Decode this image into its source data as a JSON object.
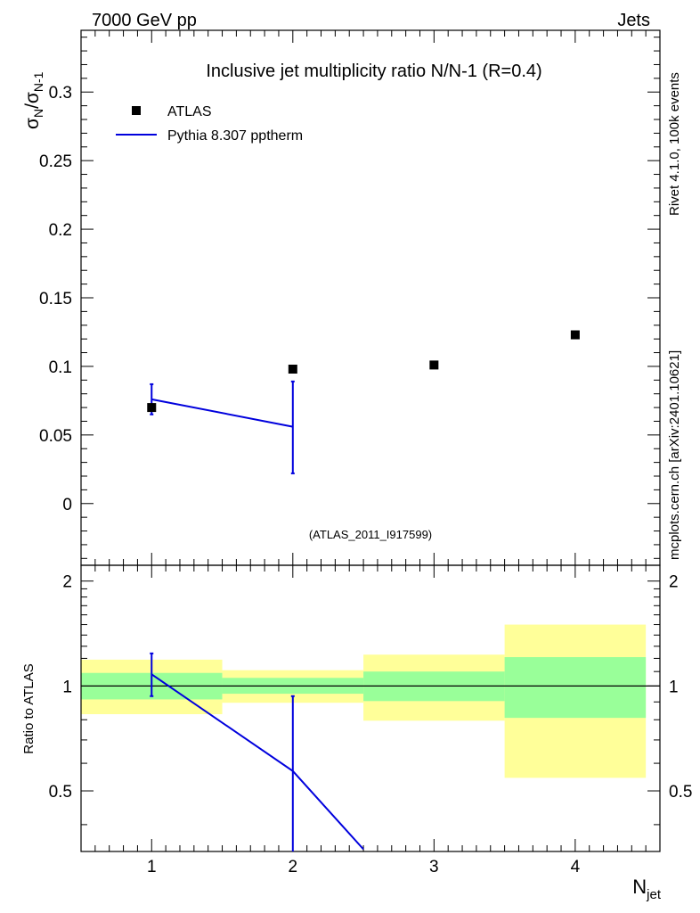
{
  "header": {
    "left": "7000 GeV pp",
    "right": "Jets"
  },
  "side_labels": {
    "rivet": "Rivet 4.1.0,  100k events",
    "mcplots": "mcplots.cern.ch [arXiv:2401.10621]"
  },
  "chart_data": [
    {
      "type": "scatter",
      "title": "Inclusive jet multiplicity ratio N/N-1 (R=0.4)",
      "analysis_id": "(ATLAS_2011_I917599)",
      "ylabel_main": "σ",
      "ylabel_sub_n": "N",
      "ylabel_slash": "/σ",
      "ylabel_sub_n1": "N-1",
      "xlim": [
        0.5,
        4.6
      ],
      "ylim": [
        -0.045,
        0.345
      ],
      "yticks": [
        0,
        0.05,
        0.1,
        0.15,
        0.2,
        0.25,
        0.3
      ],
      "ytick_labels": [
        "0",
        "0.05",
        "0.1",
        "0.15",
        "0.2",
        "0.25",
        "0.3"
      ],
      "legend_position": "top-left",
      "series": [
        {
          "name": "ATLAS",
          "kind": "data-markers",
          "color": "#000000",
          "x": [
            1,
            2,
            3,
            4
          ],
          "y": [
            0.07,
            0.098,
            0.101,
            0.123
          ]
        },
        {
          "name": "Pythia 8.307 pptherm",
          "kind": "mc-line",
          "color": "#0000dd",
          "x": [
            1,
            2
          ],
          "y": [
            0.076,
            0.056
          ],
          "err_low": [
            0.065,
            0.022
          ],
          "err_high": [
            0.087,
            0.089
          ]
        }
      ]
    },
    {
      "type": "line",
      "ylabel": "Ratio to ATLAS",
      "xlabel_main": "N",
      "xlabel_sub": "jet",
      "xlim": [
        0.5,
        4.6
      ],
      "ylim": [
        0.335,
        2.22
      ],
      "yticks": [
        0.5,
        1,
        2
      ],
      "ytick_labels": [
        "0.5",
        "1",
        "2"
      ],
      "xticks": [
        1,
        2,
        3,
        4
      ],
      "xtick_labels": [
        "1",
        "2",
        "3",
        "4"
      ],
      "reference_line": 1,
      "bands": [
        {
          "x_low": 0.5,
          "x_high": 1.5,
          "inner_low": 0.915,
          "inner_high": 1.09,
          "outer_low": 0.83,
          "outer_high": 1.19
        },
        {
          "x_low": 1.5,
          "x_high": 2.5,
          "inner_low": 0.95,
          "inner_high": 1.055,
          "outer_low": 0.895,
          "outer_high": 1.11
        },
        {
          "x_low": 2.5,
          "x_high": 3.5,
          "inner_low": 0.905,
          "inner_high": 1.1,
          "outer_low": 0.795,
          "outer_high": 1.23
        },
        {
          "x_low": 3.5,
          "x_high": 4.5,
          "inner_low": 0.81,
          "inner_high": 1.21,
          "outer_low": 0.545,
          "outer_high": 1.5
        }
      ],
      "band_colors": {
        "inner": "#99ff99",
        "outer": "#ffff99"
      },
      "series": [
        {
          "name": "Pythia 8.307 pptherm",
          "color": "#0000dd",
          "x": [
            1,
            2,
            2.5
          ],
          "y": [
            1.08,
            0.57,
            0.34
          ],
          "err_low": [
            0.935,
            0.3
          ],
          "err_high": [
            1.24,
            0.935
          ]
        }
      ]
    }
  ]
}
